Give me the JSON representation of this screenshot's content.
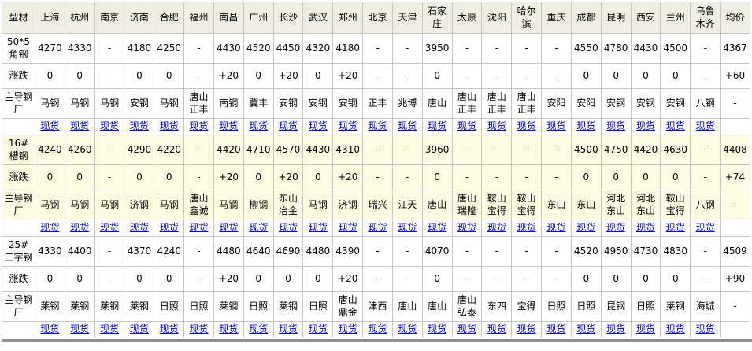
{
  "colors": {
    "link_blue": "#0000cc",
    "header_bg": "#eeeee4",
    "highlight_section_bg": "#fffbe3",
    "grid_border": "#c6c6c6",
    "bottom_edge": "#8f8f8f"
  },
  "chart_data": {
    "type": "table",
    "title": "型材价格表",
    "columns": [
      "型材",
      "上海",
      "杭州",
      "南京",
      "济南",
      "合肥",
      "福州",
      "南昌",
      "广州",
      "长沙",
      "武汉",
      "郑州",
      "北京",
      "天津",
      "石家庄",
      "太原",
      "沈阳",
      "哈尔滨",
      "重庆",
      "成都",
      "昆明",
      "西安",
      "兰州",
      "乌鲁木齐",
      "均价"
    ],
    "row_labels": {
      "change": "涨跌",
      "mill": "主导钢厂",
      "spot": "现货"
    },
    "sections": [
      {
        "product": "50*5角钢",
        "highlight": false,
        "prices": [
          "4270",
          "4330",
          "-",
          "4180",
          "4250",
          "-",
          "4430",
          "4520",
          "4450",
          "4320",
          "4180",
          "-",
          "-",
          "3950",
          "-",
          "-",
          "-",
          "-",
          "4550",
          "4780",
          "4430",
          "4500",
          "-",
          "4367"
        ],
        "changes": [
          "0",
          "0",
          "-",
          "0",
          "0",
          "-",
          "+20",
          "0",
          "+20",
          "0",
          "+20",
          "-",
          "-",
          "0",
          "-",
          "-",
          "-",
          "-",
          "0",
          "0",
          "0",
          "0",
          "-",
          "+60"
        ],
        "mills": [
          "马钢",
          "马钢",
          "马钢",
          "安钢",
          "马钢",
          "唐山正丰",
          "南钢",
          "冀丰",
          "安钢",
          "安钢",
          "安钢",
          "正丰",
          "兆博",
          "唐山",
          "唐山正丰",
          "唐山正丰",
          "唐山正丰",
          "安阳",
          "安阳",
          "安钢",
          "安钢",
          "安钢",
          "八钢",
          "-"
        ]
      },
      {
        "product": "16#槽钢",
        "highlight": true,
        "prices": [
          "4240",
          "4260",
          "-",
          "4290",
          "4220",
          "-",
          "4420",
          "4710",
          "4570",
          "4430",
          "4310",
          "-",
          "-",
          "3960",
          "-",
          "-",
          "-",
          "-",
          "4500",
          "4750",
          "4420",
          "4630",
          "-",
          "4408"
        ],
        "changes": [
          "0",
          "0",
          "-",
          "0",
          "0",
          "-",
          "+20",
          "0",
          "+20",
          "0",
          "+20",
          "-",
          "-",
          "0",
          "-",
          "-",
          "-",
          "-",
          "0",
          "0",
          "0",
          "0",
          "-",
          "+74"
        ],
        "mills": [
          "马钢",
          "马钢",
          "马钢",
          "济钢",
          "马钢",
          "唐山鑫诚",
          "马钢",
          "柳钢",
          "东山冶金",
          "马钢",
          "济钢",
          "瑞兴",
          "江天",
          "唐山",
          "唐山瑞隆",
          "鞍山宝得",
          "鞍山宝得",
          "东山",
          "东山",
          "河北东山",
          "河北东山",
          "鞍山宝得",
          "八钢",
          "-"
        ]
      },
      {
        "product": "25#工字钢",
        "highlight": false,
        "prices": [
          "4330",
          "4400",
          "-",
          "4370",
          "4240",
          "-",
          "4480",
          "4640",
          "4690",
          "4480",
          "4390",
          "-",
          "-",
          "4070",
          "-",
          "-",
          "-",
          "-",
          "4520",
          "4950",
          "4730",
          "4830",
          "-",
          "4509"
        ],
        "changes": [
          "0",
          "0",
          "-",
          "0",
          "0",
          "-",
          "+20",
          "0",
          "0",
          "0",
          "+20",
          "-",
          "-",
          "0",
          "-",
          "-",
          "-",
          "-",
          "0",
          "0",
          "0",
          "0",
          "-",
          "+90"
        ],
        "mills": [
          "莱钢",
          "莱钢",
          "莱钢",
          "莱钢",
          "日照",
          "日照",
          "莱钢",
          "日照",
          "莱钢",
          "日照",
          "唐山鼎金",
          "津西",
          "唐山",
          "唐山",
          "唐山弘泰",
          "东四",
          "宝得",
          "日照",
          "日照",
          "昆钢",
          "日照",
          "莱钢",
          "海城",
          "-"
        ]
      }
    ]
  }
}
